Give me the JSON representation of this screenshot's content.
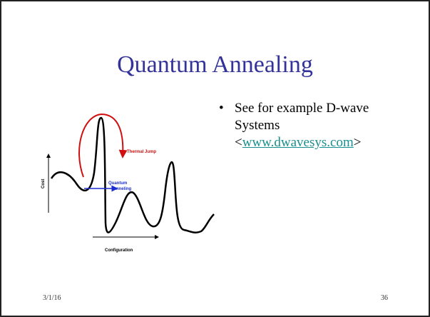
{
  "title": "Quantum Annealing",
  "bullet": {
    "text": "See for example D-wave Systems",
    "open": "<",
    "link": "www.dwavesys.com",
    "close": ">"
  },
  "diagram": {
    "thermal": "Thermal Jump",
    "tunnel_1": "Quantum",
    "tunnel_2": "Tunneling",
    "y_label": "Cost",
    "x_label": "Configuration"
  },
  "footer": {
    "date": "3/1/16",
    "page": "36"
  }
}
